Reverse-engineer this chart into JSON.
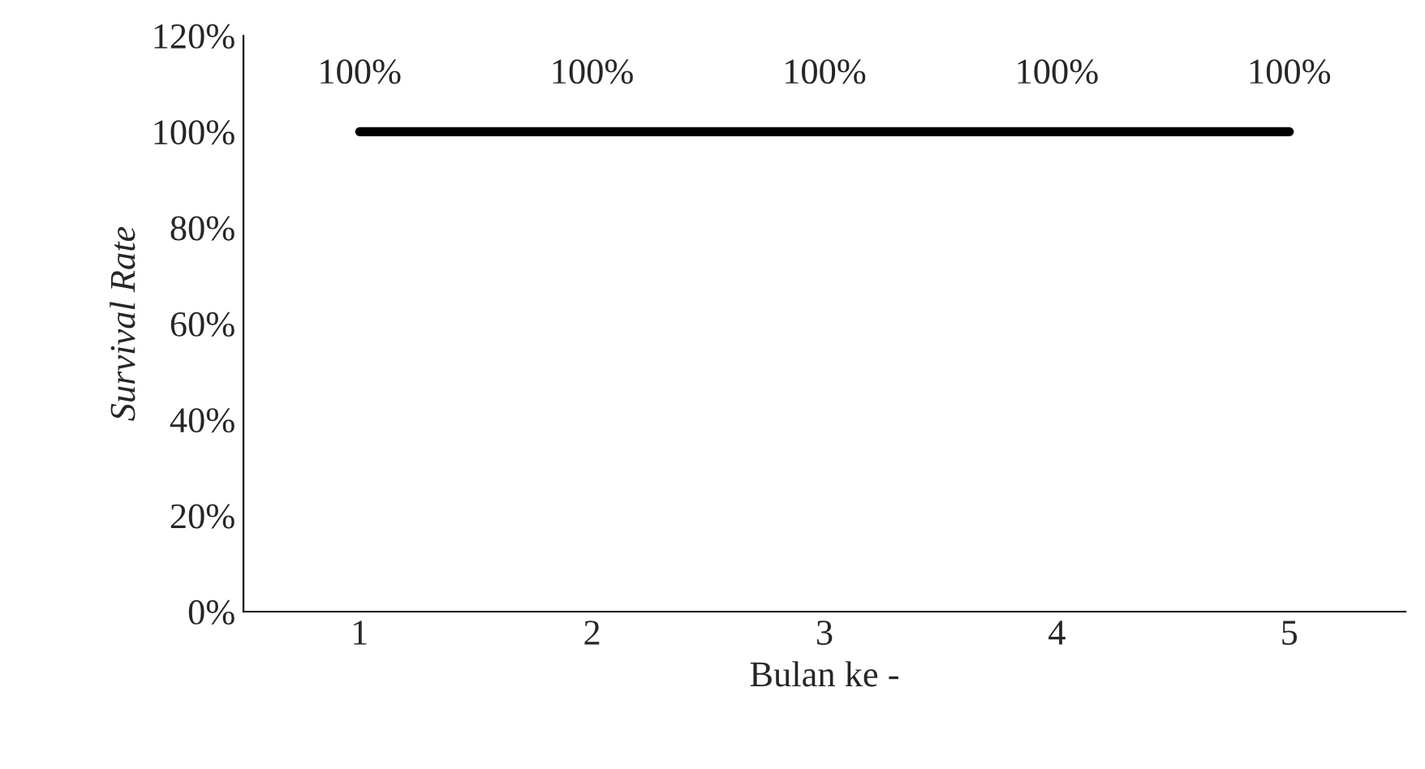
{
  "chart_data": {
    "type": "line",
    "xlabel": "Bulan ke -",
    "ylabel": "Survival Rate",
    "categories": [
      "1",
      "2",
      "3",
      "4",
      "5"
    ],
    "series": [
      {
        "color": "#000000",
        "values": [
          100,
          100,
          100,
          100,
          100
        ],
        "value_labels": [
          "100%",
          "100%",
          "100%",
          "100%",
          "100%"
        ]
      }
    ],
    "ylim": [
      0,
      120
    ],
    "yticks": [
      {
        "value": 0,
        "label": "0%"
      },
      {
        "value": 20,
        "label": "20%"
      },
      {
        "value": 40,
        "label": "40%"
      },
      {
        "value": 60,
        "label": "60%"
      },
      {
        "value": 80,
        "label": "80%"
      },
      {
        "value": 100,
        "label": "100%"
      },
      {
        "value": 120,
        "label": "120%"
      }
    ],
    "grid": false,
    "legend": false,
    "marker": "none",
    "line_style": "solid"
  }
}
